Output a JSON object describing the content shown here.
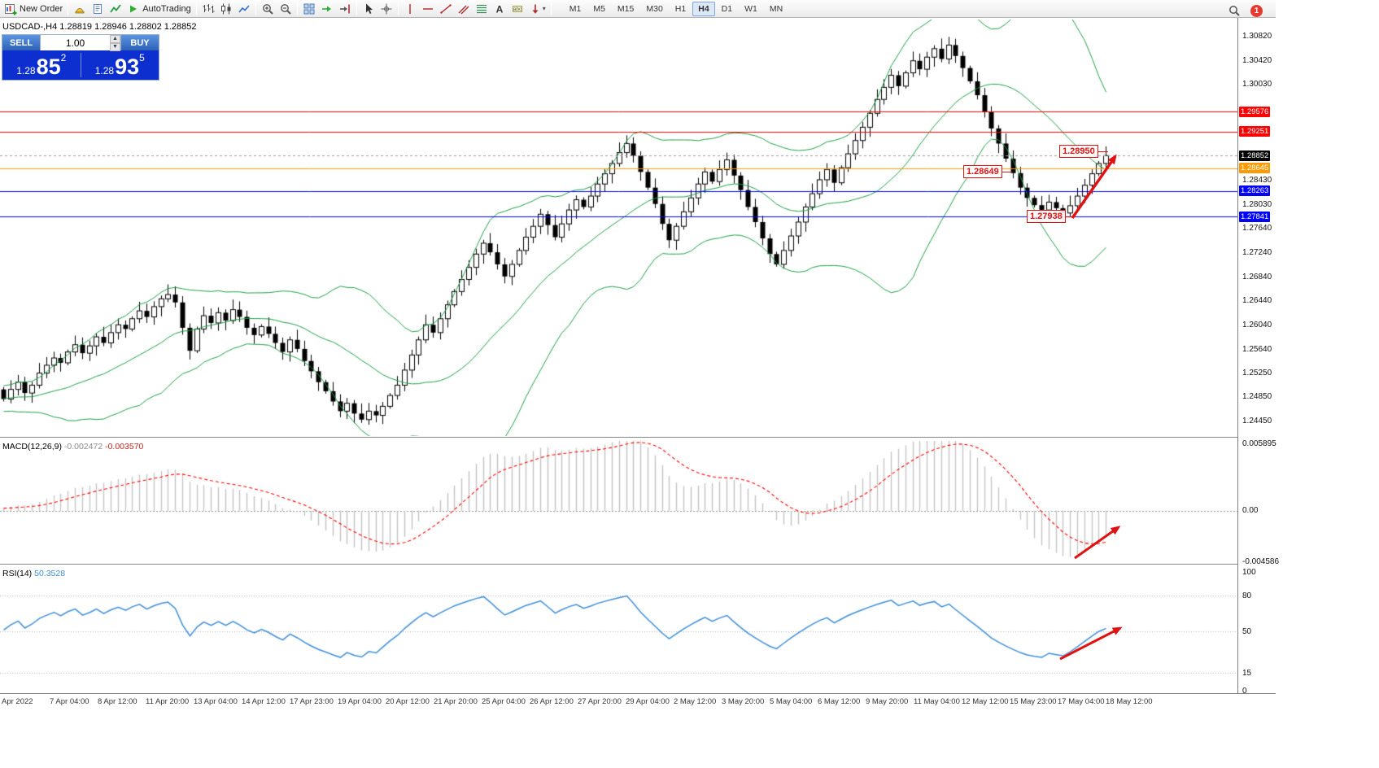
{
  "toolbar": {
    "items": [
      {
        "name": "new-order",
        "icon": "new-order",
        "label": "New Order"
      },
      {
        "sep": true
      },
      {
        "name": "expert-advisors",
        "icon": "expert-advisors"
      },
      {
        "name": "scripts",
        "icon": "scripts"
      },
      {
        "name": "indicators",
        "icon": "indicators"
      },
      {
        "name": "autotrading",
        "icon": "play",
        "label": "AutoTrading"
      },
      {
        "sep": true
      },
      {
        "name": "chart-bars",
        "icon": "bars"
      },
      {
        "name": "chart-candles",
        "icon": "candles"
      },
      {
        "name": "chart-line",
        "icon": "linechart"
      },
      {
        "sep": true
      },
      {
        "name": "zoom-in",
        "icon": "zoomin"
      },
      {
        "name": "zoom-out",
        "icon": "zoomout"
      },
      {
        "sep": true
      },
      {
        "name": "tile-windows",
        "icon": "tile"
      },
      {
        "name": "auto-scroll",
        "icon": "autoscroll"
      },
      {
        "name": "chart-shift",
        "icon": "chartshift"
      },
      {
        "sep": true
      },
      {
        "name": "cursor",
        "icon": "cursor"
      },
      {
        "name": "crosshair",
        "icon": "crosshair"
      },
      {
        "sep": true
      },
      {
        "name": "vertical-line",
        "icon": "vline"
      },
      {
        "name": "horizontal-line",
        "icon": "hline"
      },
      {
        "name": "trendline",
        "icon": "trend"
      },
      {
        "name": "equidistant-channel",
        "icon": "channel"
      },
      {
        "name": "fibonacci",
        "icon": "fibo"
      },
      {
        "name": "text",
        "icon": "textA"
      },
      {
        "name": "text-label",
        "icon": "textT"
      },
      {
        "name": "arrows",
        "icon": "arrowobj",
        "dropdown": true
      },
      {
        "sep": true
      }
    ],
    "timeframes": [
      "M1",
      "M5",
      "M15",
      "M30",
      "H1",
      "H4",
      "D1",
      "W1",
      "MN"
    ],
    "active_timeframe": "H4",
    "notification_count": "1"
  },
  "chart": {
    "title": "USDCAD-,H4 1.28819 1.28946 1.28802 1.28852",
    "symbol": "USDCAD-",
    "period": "H4",
    "ohlc": {
      "open": "1.28819",
      "high": "1.28946",
      "low": "1.28802",
      "close": "1.28852"
    }
  },
  "order_panel": {
    "sell_label": "SELL",
    "buy_label": "BUY",
    "volume": "1.00",
    "sell_price_prefix": "1.28",
    "sell_price_big": "85",
    "sell_price_sup": "2",
    "buy_price_prefix": "1.28",
    "buy_price_big": "93",
    "buy_price_sup": "5"
  },
  "annotations": {
    "target_price": "1.28950",
    "mid_price": "1.28649",
    "low_price": "1.27938"
  },
  "macd": {
    "name": "MACD(12,26,9)",
    "value_main": "-0.002472",
    "value_signal": "-0.003570",
    "scale_max": "0.005895",
    "scale_zero": "0.00",
    "scale_min": "-0.004586"
  },
  "rsi": {
    "name": "RSI(14)",
    "value": "50.3528",
    "scale_max": "100",
    "scale_min": "0",
    "levels": [
      "80",
      "50",
      "15"
    ]
  },
  "colors": {
    "accent_blue_light": "#5b93e0",
    "accent_blue_dark": "#2d62b8",
    "order_price_bg": "#0d2fd0",
    "bull_candle": "#ffffff",
    "bear_candle": "#000000",
    "candle_outline": "#000000",
    "bollinger": "#1d9e45",
    "macd_histogram": "#c4c4c4",
    "macd_signal": "#ff0000",
    "rsi_line": "#3e8ed9",
    "annotation_red": "#e01212",
    "bid_chip_bg": "#000000",
    "badge_red": "#e6382e"
  },
  "chart_data": {
    "type": "candlestick",
    "symbol": "USDCAD",
    "timeframe": "H4",
    "price_max": 1.3082,
    "price_min": 1.2445,
    "closes": [
      1.2482,
      1.2498,
      1.251,
      1.2492,
      1.2505,
      1.2525,
      1.2538,
      1.255,
      1.2542,
      1.256,
      1.2572,
      1.2558,
      1.257,
      1.2585,
      1.2575,
      1.2592,
      1.2605,
      1.2598,
      1.2615,
      1.2628,
      1.2618,
      1.2635,
      1.2648,
      1.2655,
      1.2642,
      1.26,
      1.2562,
      1.2598,
      1.262,
      1.2608,
      1.2625,
      1.2612,
      1.263,
      1.2618,
      1.26,
      1.2588,
      1.2602,
      1.259,
      1.2575,
      1.256,
      1.258,
      1.2565,
      1.2545,
      1.2528,
      1.251,
      1.2495,
      1.2478,
      1.2462,
      1.2475,
      1.2458,
      1.2448,
      1.2462,
      1.2455,
      1.247,
      1.2488,
      1.2505,
      1.253,
      1.2555,
      1.258,
      1.2605,
      1.2592,
      1.2615,
      1.2638,
      1.266,
      1.268,
      1.27,
      1.2722,
      1.274,
      1.2725,
      1.2705,
      1.2685,
      1.2705,
      1.2728,
      1.275,
      1.2768,
      1.2788,
      1.277,
      1.275,
      1.2772,
      1.2795,
      1.2812,
      1.28,
      1.2818,
      1.2838,
      1.2855,
      1.2872,
      1.289,
      1.2905,
      1.2885,
      1.2858,
      1.2832,
      1.2805,
      1.2772,
      1.2745,
      1.2768,
      1.2792,
      1.2815,
      1.2838,
      1.2858,
      1.2842,
      1.2862,
      1.2878,
      1.2852,
      1.2828,
      1.28,
      1.2775,
      1.2748,
      1.2722,
      1.2705,
      1.2728,
      1.2752,
      1.2775,
      1.28,
      1.2822,
      1.2845,
      1.2862,
      1.284,
      1.2865,
      1.2888,
      1.291,
      1.2932,
      1.2955,
      1.2978,
      1.2998,
      1.3018,
      1.3,
      1.3022,
      1.3042,
      1.3028,
      1.3048,
      1.3062,
      1.3045,
      1.3068,
      1.305,
      1.303,
      1.3008,
      1.2985,
      1.2958,
      1.293,
      1.2905,
      1.288,
      1.2856,
      1.2832,
      1.2815,
      1.2803,
      1.2795,
      1.2808,
      1.2798,
      1.279,
      1.2802,
      1.2818,
      1.2836,
      1.2855,
      1.2872,
      1.2885
    ],
    "bollinger": {
      "period": 20,
      "deviation": 2
    },
    "macd_params": {
      "fast": 12,
      "slow": 26,
      "signal": 9
    },
    "rsi_params": {
      "period": 14
    },
    "hlines": [
      {
        "price": 1.29576,
        "color": "#ff0000",
        "label": "1.29576"
      },
      {
        "price": 1.29251,
        "color": "#ff0000",
        "label": "1.29251"
      },
      {
        "price": 1.28645,
        "color": "#ff9b00",
        "label": "1.28645"
      },
      {
        "price": 1.28263,
        "color": "#0000ff",
        "label": "1.28263"
      },
      {
        "price": 1.27841,
        "color": "#0000ff",
        "label": "1.27841"
      }
    ],
    "bid": {
      "price": 1.28852,
      "label": "1.28852"
    },
    "y_axis_labels": [
      "1.30820",
      "1.30420",
      "1.30030",
      "1.28430",
      "1.28030",
      "1.27640",
      "1.27240",
      "1.26840",
      "1.26440",
      "1.26040",
      "1.25640",
      "1.25250",
      "1.24850",
      "1.24450"
    ],
    "time_labels": [
      "Apr 2022",
      "7 Apr 04:00",
      "8 Apr 12:00",
      "11 Apr 20:00",
      "13 Apr 04:00",
      "14 Apr 12:00",
      "17 Apr 23:00",
      "19 Apr 04:00",
      "20 Apr 12:00",
      "21 Apr 20:00",
      "25 Apr 04:00",
      "26 Apr 12:00",
      "27 Apr 20:00",
      "29 Apr 04:00",
      "2 May 12:00",
      "3 May 20:00",
      "5 May 04:00",
      "6 May 12:00",
      "9 May 20:00",
      "11 May 04:00",
      "12 May 12:00",
      "15 May 23:00",
      "17 May 04:00",
      "18 May 12:00"
    ]
  }
}
